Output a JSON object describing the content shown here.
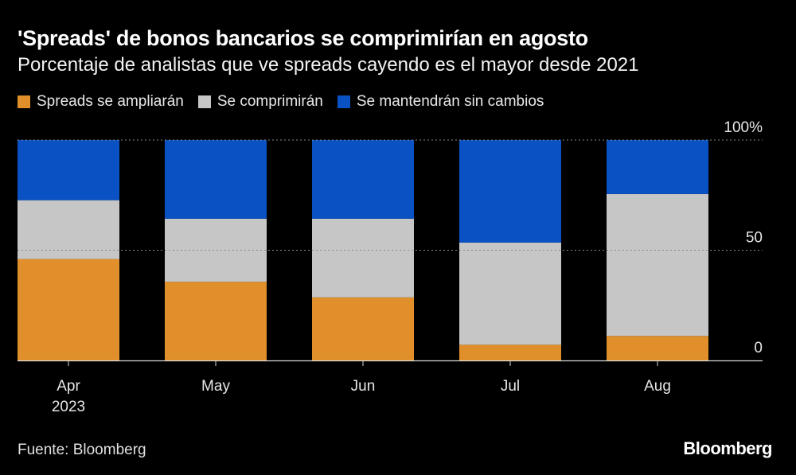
{
  "chart_data": {
    "type": "bar",
    "stacked": true,
    "title": "'Spreads' de bonos bancarios se comprimirían en agosto",
    "subtitle": "Porcentaje de analistas que ve spreads cayendo es el mayor desde 2021",
    "categories": [
      "Apr",
      "May",
      "Jun",
      "Jul",
      "Aug"
    ],
    "category_sublabels": [
      "2023",
      "",
      "",
      "",
      ""
    ],
    "series": [
      {
        "name": "Spreads se ampliarán",
        "color": "#E08F2A",
        "values": [
          46.0,
          35.7,
          28.6,
          7.1,
          11.1
        ]
      },
      {
        "name": "Se comprimirán",
        "color": "#C6C6C6",
        "values": [
          26.7,
          28.6,
          35.7,
          46.4,
          64.4
        ]
      },
      {
        "name": "Se mantendrán sin cambios",
        "color": "#0A52C4",
        "values": [
          27.3,
          35.7,
          35.7,
          46.5,
          24.5
        ]
      }
    ],
    "ylim": [
      0,
      100
    ],
    "yticks": [
      {
        "value": 0,
        "label": "0"
      },
      {
        "value": 50,
        "label": "50"
      },
      {
        "value": 100,
        "label": "100%"
      }
    ],
    "grid": true,
    "legend_position": "top-left",
    "source": "Fuente: Bloomberg",
    "brand": "Bloomberg"
  }
}
